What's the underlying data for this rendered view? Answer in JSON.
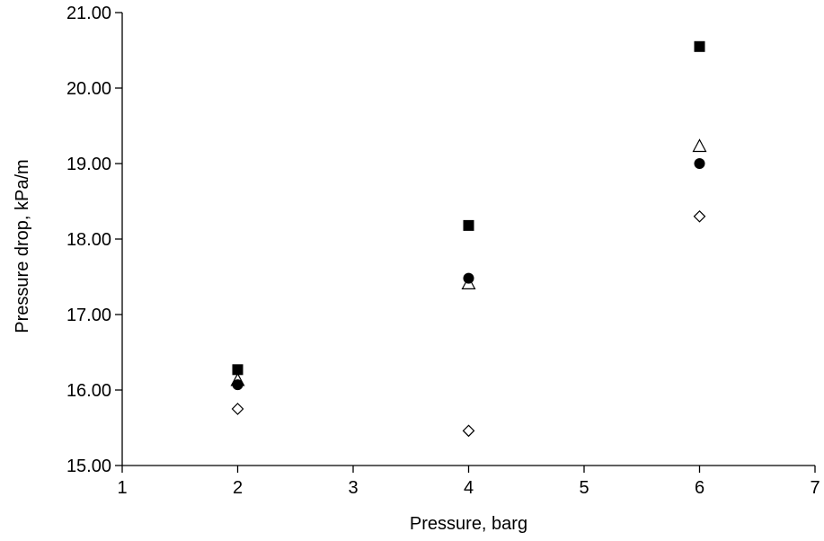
{
  "chart_data": {
    "type": "scatter",
    "title": "",
    "xlabel": "Pressure, barg",
    "ylabel": "Pressure drop, kPa/m",
    "xlim": [
      1,
      7
    ],
    "ylim": [
      15.0,
      21.0
    ],
    "xticks": [
      "1",
      "2",
      "3",
      "4",
      "5",
      "6",
      "7"
    ],
    "yticks": [
      "15.00",
      "16.00",
      "17.00",
      "18.00",
      "19.00",
      "20.00",
      "21.00"
    ],
    "grid": false,
    "legend": "none",
    "series": [
      {
        "marker": "filled-square",
        "color": "#000000",
        "points": [
          {
            "x": 2,
            "y": 16.27
          },
          {
            "x": 4,
            "y": 18.18
          },
          {
            "x": 6,
            "y": 20.55
          }
        ]
      },
      {
        "marker": "open-triangle",
        "color": "#000000",
        "points": [
          {
            "x": 2,
            "y": 16.12
          },
          {
            "x": 4,
            "y": 17.4
          },
          {
            "x": 6,
            "y": 19.22
          }
        ]
      },
      {
        "marker": "filled-circle",
        "color": "#000000",
        "points": [
          {
            "x": 2,
            "y": 16.07
          },
          {
            "x": 4,
            "y": 17.48
          },
          {
            "x": 6,
            "y": 19.0
          }
        ]
      },
      {
        "marker": "open-diamond",
        "color": "#000000",
        "points": [
          {
            "x": 2,
            "y": 15.75
          },
          {
            "x": 4,
            "y": 15.46
          },
          {
            "x": 6,
            "y": 18.3
          }
        ]
      }
    ]
  }
}
